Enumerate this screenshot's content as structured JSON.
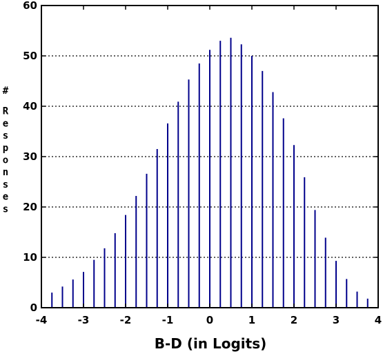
{
  "chart_data": {
    "type": "bar",
    "title": "",
    "xlabel": "B-D (in Logits)",
    "ylabel": "# Responses",
    "xlim": [
      -4,
      4
    ],
    "ylim": [
      0,
      60
    ],
    "xticks": [
      -4,
      -3,
      -2,
      -1,
      0,
      1,
      2,
      3,
      4
    ],
    "xtick_labels": [
      "-4",
      "-3",
      "-2",
      "-1",
      "0",
      "1",
      "2",
      "3",
      "4"
    ],
    "yticks": [
      0,
      10,
      20,
      30,
      40,
      50,
      60
    ],
    "ytick_labels": [
      "0",
      "10",
      "20",
      "30",
      "40",
      "50",
      "60"
    ],
    "grid": "horizontal-dotted",
    "bar_color": "#00008b",
    "x": [
      -3.75,
      -3.5,
      -3.25,
      -3.0,
      -2.75,
      -2.5,
      -2.25,
      -2.0,
      -1.75,
      -1.5,
      -1.25,
      -1.0,
      -0.75,
      -0.5,
      -0.25,
      0.0,
      0.25,
      0.5,
      0.75,
      1.0,
      1.25,
      1.5,
      1.75,
      2.0,
      2.25,
      2.5,
      2.75,
      3.0,
      3.25,
      3.5,
      3.75
    ],
    "values": [
      3,
      4.2,
      5.6,
      7.1,
      9.5,
      11.8,
      14.8,
      18.4,
      22.2,
      26.6,
      31.5,
      36.6,
      40.9,
      45.3,
      48.5,
      51.2,
      53,
      53.6,
      52.3,
      50,
      47,
      42.8,
      37.6,
      32.3,
      25.9,
      19.4,
      13.9,
      9.3,
      5.7,
      3.2,
      1.8
    ]
  }
}
